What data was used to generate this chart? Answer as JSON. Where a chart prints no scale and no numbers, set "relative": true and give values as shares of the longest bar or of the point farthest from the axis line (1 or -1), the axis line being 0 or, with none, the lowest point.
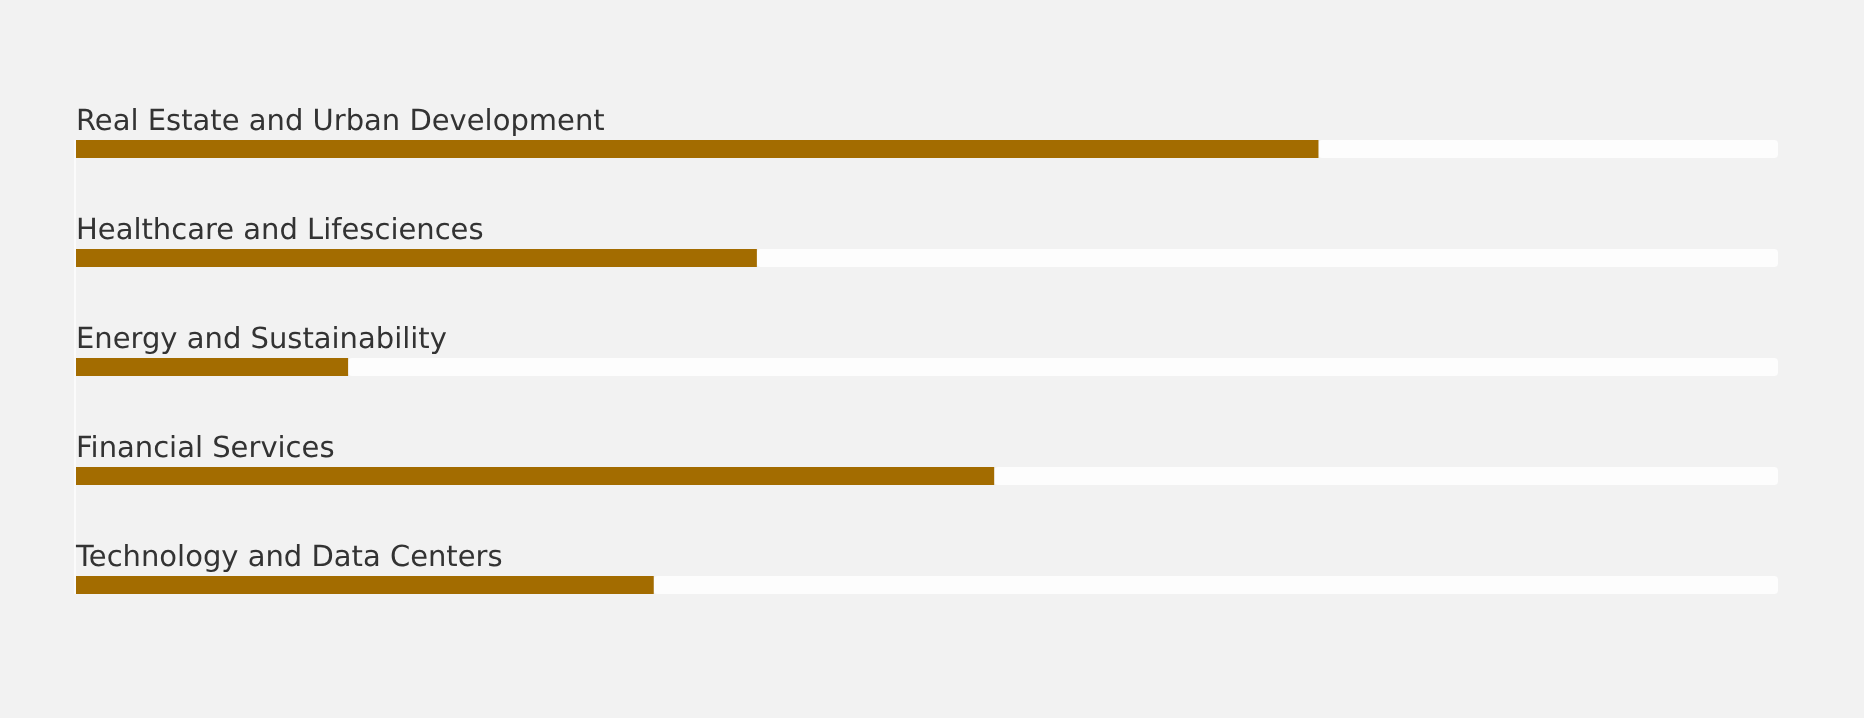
{
  "chart_data": {
    "type": "bar",
    "orientation": "horizontal",
    "relative": true,
    "categories": [
      "Real Estate and Urban Development",
      "Healthcare and Lifesciences",
      "Energy and Sustainability",
      "Financial Services",
      "Technology and Data Centers"
    ],
    "values": [
      1,
      0.548,
      0.219,
      0.739,
      0.465
    ],
    "color": "#a36c00"
  }
}
